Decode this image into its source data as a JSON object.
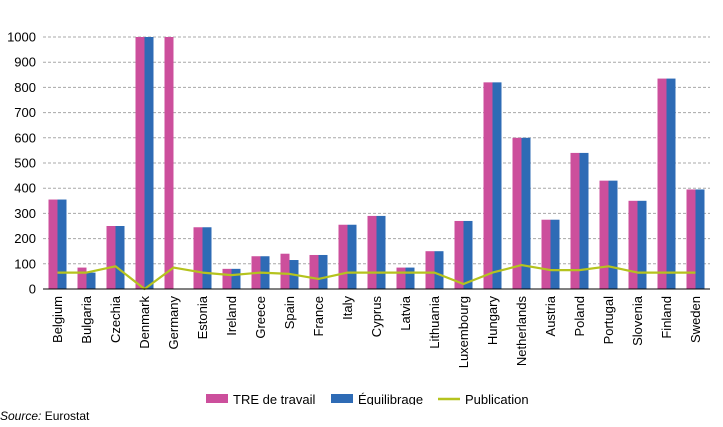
{
  "chart_data": {
    "type": "bar",
    "categories": [
      "Belgium",
      "Bulgaria",
      "Czechia",
      "Denmark",
      "Germany",
      "Estonia",
      "Ireland",
      "Greece",
      "Spain",
      "France",
      "Italy",
      "Cyprus",
      "Latvia",
      "Lithuania",
      "Luxembourg",
      "Hungary",
      "Netherlands",
      "Austria",
      "Poland",
      "Portugal",
      "Slovenia",
      "Finland",
      "Sweden"
    ],
    "series": [
      {
        "name": "TRE de travail",
        "type": "bar",
        "color": "#cc4f9c",
        "values": [
          355,
          85,
          250,
          1000,
          1000,
          245,
          80,
          130,
          140,
          135,
          255,
          290,
          85,
          150,
          270,
          820,
          600,
          275,
          540,
          430,
          350,
          835,
          395
        ]
      },
      {
        "name": "Équilibrage",
        "type": "bar",
        "color": "#2e6bb5",
        "values": [
          355,
          65,
          250,
          1000,
          null,
          245,
          80,
          130,
          115,
          135,
          255,
          290,
          85,
          150,
          270,
          820,
          600,
          275,
          540,
          430,
          350,
          835,
          395
        ]
      },
      {
        "name": "Publication",
        "type": "line",
        "color": "#b5c31e",
        "values": [
          65,
          65,
          90,
          0,
          85,
          65,
          55,
          65,
          60,
          40,
          65,
          65,
          65,
          65,
          20,
          65,
          95,
          75,
          75,
          90,
          65,
          65,
          65
        ]
      }
    ],
    "ylim": [
      0,
      1000
    ],
    "yticks": [
      0,
      100,
      200,
      300,
      400,
      500,
      600,
      700,
      800,
      900,
      1000
    ],
    "grid": true,
    "legend_position": "bottom"
  },
  "source": {
    "label": "Source:",
    "text": " Eurostat"
  }
}
